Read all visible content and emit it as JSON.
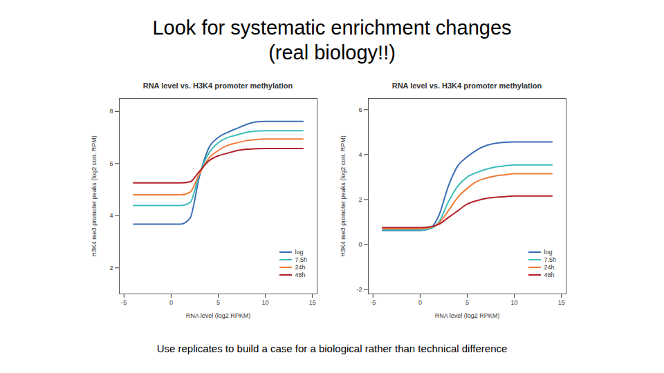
{
  "title": [
    "Look for systematic enrichment changes",
    "(real biology!!)"
  ],
  "caption": "Use replicates to build a case for a biological rather than technical difference",
  "chart_data": [
    {
      "type": "line",
      "title": "RNA level vs. H3K4 promoter methylation",
      "x_label": "RNA level (log2 RPKM)",
      "y_label": "H3K4 me3 promoter peaks (log2 corr. RPM)",
      "x": [
        -4,
        0,
        1,
        2,
        3,
        4,
        5,
        6,
        7,
        8,
        9,
        10,
        12,
        14
      ],
      "series": [
        {
          "name": "log",
          "color": "#3a6db5",
          "values": [
            3.68,
            3.68,
            3.68,
            3.9,
            5.5,
            6.6,
            7.0,
            7.2,
            7.35,
            7.5,
            7.6,
            7.62,
            7.62,
            7.62
          ]
        },
        {
          "name": "7.5h",
          "color": "#3dbdb8",
          "values": [
            4.39,
            4.39,
            4.39,
            4.5,
            5.6,
            6.4,
            6.8,
            7.0,
            7.1,
            7.2,
            7.25,
            7.26,
            7.26,
            7.26
          ]
        },
        {
          "name": "24h",
          "color": "#ef7d3a",
          "values": [
            4.8,
            4.8,
            4.8,
            4.9,
            5.6,
            6.2,
            6.5,
            6.7,
            6.8,
            6.88,
            6.92,
            6.94,
            6.94,
            6.94
          ]
        },
        {
          "name": "48h",
          "color": "#b3202a",
          "values": [
            5.26,
            5.26,
            5.26,
            5.3,
            5.7,
            6.1,
            6.3,
            6.4,
            6.5,
            6.55,
            6.57,
            6.58,
            6.58,
            6.58
          ]
        }
      ],
      "xlim": [
        -5.5,
        15.5
      ],
      "xticks": [
        -5,
        0,
        5,
        10,
        15
      ],
      "ylim": [
        1,
        8.5
      ],
      "yticks": [
        2,
        4,
        6,
        8
      ],
      "legend": "lower right"
    },
    {
      "type": "line",
      "title": "RNA level vs. H3K4 promoter methylation",
      "x_label": "RNA level (log2 RPKM)",
      "y_label": "H3K4 me3 promoter peaks (log2 corr. RPM)",
      "x": [
        -4,
        0,
        1,
        2,
        3,
        4,
        5,
        6,
        7,
        8,
        9,
        10,
        12,
        14
      ],
      "series": [
        {
          "name": "log",
          "color": "#3a6db5",
          "values": [
            0.62,
            0.62,
            0.7,
            1.3,
            2.6,
            3.5,
            3.9,
            4.2,
            4.4,
            4.5,
            4.55,
            4.56,
            4.56,
            4.56
          ]
        },
        {
          "name": "7.5h",
          "color": "#3dbdb8",
          "values": [
            0.65,
            0.65,
            0.7,
            1.0,
            1.9,
            2.6,
            3.0,
            3.2,
            3.35,
            3.45,
            3.5,
            3.54,
            3.54,
            3.54
          ]
        },
        {
          "name": "24h",
          "color": "#ef7d3a",
          "values": [
            0.7,
            0.7,
            0.75,
            0.95,
            1.5,
            2.1,
            2.5,
            2.8,
            2.95,
            3.05,
            3.1,
            3.15,
            3.15,
            3.15
          ]
        },
        {
          "name": "48h",
          "color": "#b3202a",
          "values": [
            0.75,
            0.75,
            0.78,
            0.9,
            1.2,
            1.5,
            1.8,
            1.95,
            2.05,
            2.1,
            2.13,
            2.16,
            2.16,
            2.16
          ]
        }
      ],
      "xlim": [
        -5.5,
        15.5
      ],
      "xticks": [
        -5,
        0,
        5,
        10,
        15
      ],
      "ylim": [
        -2.2,
        6.5
      ],
      "yticks": [
        -2,
        0,
        2,
        4,
        6
      ],
      "legend": "lower right"
    }
  ]
}
